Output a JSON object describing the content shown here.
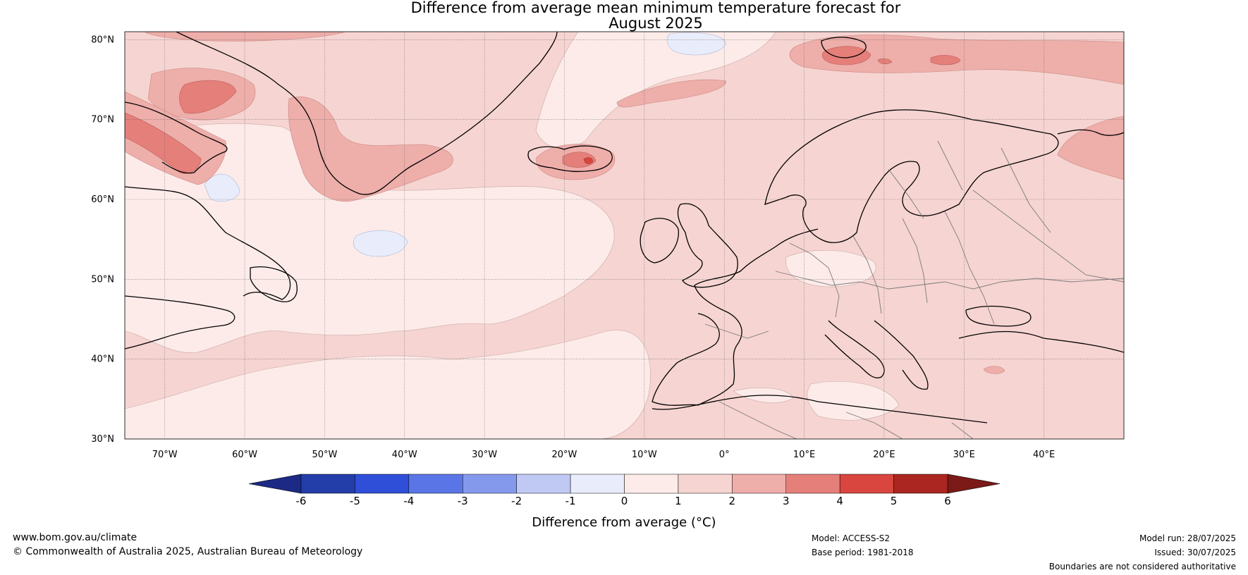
{
  "title": {
    "line1": "Difference from average mean minimum temperature forecast for",
    "line2": "August 2025"
  },
  "map": {
    "extent": {
      "lon": [
        -75,
        50
      ],
      "lat": [
        30,
        81
      ]
    },
    "lat_ticks": [
      {
        "lat": 80,
        "label": "80°N"
      },
      {
        "lat": 70,
        "label": "70°N"
      },
      {
        "lat": 60,
        "label": "60°N"
      },
      {
        "lat": 50,
        "label": "50°N"
      },
      {
        "lat": 40,
        "label": "40°N"
      },
      {
        "lat": 30,
        "label": "30°N"
      }
    ],
    "lon_ticks": [
      {
        "lon": -70,
        "label": "70°W"
      },
      {
        "lon": -60,
        "label": "60°W"
      },
      {
        "lon": -50,
        "label": "50°W"
      },
      {
        "lon": -40,
        "label": "40°W"
      },
      {
        "lon": -30,
        "label": "30°W"
      },
      {
        "lon": -20,
        "label": "20°W"
      },
      {
        "lon": -10,
        "label": "10°W"
      },
      {
        "lon": 0,
        "label": "0°"
      },
      {
        "lon": 10,
        "label": "10°E"
      },
      {
        "lon": 20,
        "label": "20°E"
      },
      {
        "lon": 30,
        "label": "30°E"
      },
      {
        "lon": 40,
        "label": "40°E"
      }
    ],
    "base_color": "#f6d4d1"
  },
  "colorbar": {
    "label": "Difference from average (°C)",
    "ticks": [
      "-6",
      "-5",
      "-4",
      "-3",
      "-2",
      "-1",
      "0",
      "1",
      "2",
      "3",
      "4",
      "5",
      "6"
    ],
    "bins": [
      "#233ea8",
      "#2f4fd8",
      "#5a76e6",
      "#8599ec",
      "#bfc9f4",
      "#e9edfb",
      "#fcebe9",
      "#f6d4d1",
      "#eeaeaa",
      "#e57f7a",
      "#d8463f",
      "#ab2620"
    ],
    "under_color": "#1c2a86",
    "over_color": "#7b1a17"
  },
  "footer": {
    "website": "www.bom.gov.au/climate",
    "copyright": "© Commonwealth of Australia 2025, Australian Bureau of Meteorology",
    "model": "Model: ACCESS-S2",
    "base_period": "Base period: 1981-2018",
    "model_run": "Model run: 28/07/2025",
    "issued": "Issued: 30/07/2025",
    "disclaimer": "Boundaries are not considered authoritative"
  }
}
